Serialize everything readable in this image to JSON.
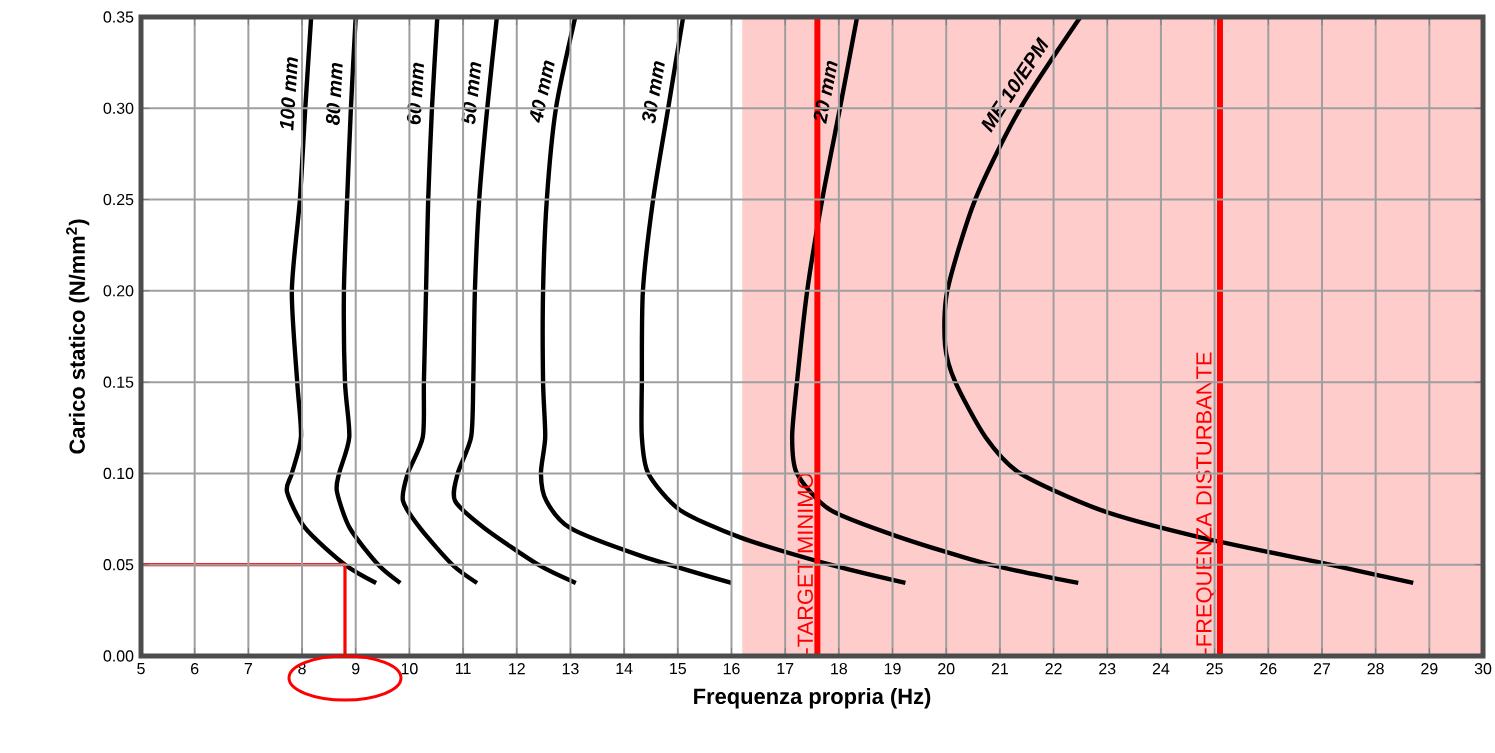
{
  "chart_data": {
    "type": "line",
    "xlabel": "Frequenza propria (Hz)",
    "ylabel": "Carico statico (N/mm$^{2}$)",
    "xlim": [
      5,
      30
    ],
    "ylim": [
      0,
      0.35
    ],
    "xticks": [
      5,
      6,
      7,
      8,
      9,
      10,
      11,
      12,
      13,
      14,
      15,
      16,
      17,
      18,
      19,
      20,
      21,
      22,
      23,
      24,
      25,
      26,
      27,
      28,
      29,
      30
    ],
    "yticks": [
      {
        "value": 0,
        "label": "0.00"
      },
      0.05,
      {
        "value": 0.1,
        "label": "0.10"
      },
      0.15,
      {
        "value": 0.2,
        "label": "0.20"
      },
      0.25,
      {
        "value": 0.3,
        "label": "0.30"
      },
      0.35
    ],
    "grid": true,
    "marker": "none",
    "series": [
      {
        "name": "100 mm",
        "color": "#000000",
        "x": [
          8.17,
          8.06,
          7.96,
          7.81,
          7.91,
          7.98,
          7.81,
          7.72,
          8.06,
          8.8,
          9.38
        ],
        "values": [
          0.35,
          0.3,
          0.25,
          0.2,
          0.15,
          0.12,
          0.1,
          0.09,
          0.07,
          0.05,
          0.04
        ]
      },
      {
        "name": "80 mm",
        "color": "#000000",
        "x": [
          9.0,
          8.91,
          8.84,
          8.78,
          8.8,
          8.88,
          8.69,
          8.65,
          8.89,
          9.42,
          9.83
        ],
        "values": [
          0.35,
          0.3,
          0.25,
          0.2,
          0.15,
          0.12,
          0.1,
          0.09,
          0.07,
          0.05,
          0.04
        ]
      },
      {
        "name": "60 mm",
        "color": "#000000",
        "x": [
          10.52,
          10.42,
          10.35,
          10.31,
          10.27,
          10.25,
          9.97,
          9.88,
          10.2,
          10.8,
          11.26
        ],
        "values": [
          0.35,
          0.3,
          0.25,
          0.2,
          0.15,
          0.12,
          0.1,
          0.085,
          0.07,
          0.05,
          0.04
        ]
      },
      {
        "name": "50 mm",
        "color": "#000000",
        "x": [
          11.63,
          11.45,
          11.3,
          11.22,
          11.19,
          11.15,
          10.9,
          10.85,
          11.4,
          12.4,
          13.1
        ],
        "values": [
          0.35,
          0.3,
          0.25,
          0.2,
          0.15,
          0.12,
          0.1,
          0.085,
          0.07,
          0.05,
          0.04
        ]
      },
      {
        "name": "40 mm",
        "color": "#000000",
        "x": [
          13.09,
          12.73,
          12.56,
          12.49,
          12.49,
          12.53,
          12.45,
          12.55,
          13.0,
          14.3,
          16.0
        ],
        "values": [
          0.35,
          0.3,
          0.25,
          0.2,
          0.15,
          0.12,
          0.1,
          0.085,
          0.07,
          0.055,
          0.04
        ]
      },
      {
        "name": "30 mm",
        "color": "#000000",
        "x": [
          15.1,
          14.82,
          14.54,
          14.35,
          14.33,
          14.33,
          14.45,
          15.04,
          16.16,
          17.84,
          19.24
        ],
        "values": [
          0.35,
          0.3,
          0.25,
          0.2,
          0.15,
          0.12,
          0.1,
          0.08,
          0.065,
          0.05,
          0.04
        ]
      },
      {
        "name": "20 mm",
        "color": "#000000",
        "x": [
          18.34,
          18.02,
          17.69,
          17.41,
          17.22,
          17.13,
          17.22,
          17.84,
          19.14,
          20.82,
          22.46
        ],
        "values": [
          0.35,
          0.3,
          0.25,
          0.2,
          0.15,
          0.12,
          0.1,
          0.08,
          0.065,
          0.05,
          0.04
        ]
      },
      {
        "name": "ME 10/EPM",
        "color": "#000000",
        "x": [
          22.5,
          21.38,
          20.54,
          20.02,
          19.98,
          20.17,
          20.73,
          21.38,
          22.87,
          24.73,
          27.15,
          28.7
        ],
        "values": [
          0.35,
          0.3,
          0.25,
          0.2,
          0.17,
          0.15,
          0.12,
          0.1,
          0.08,
          0.065,
          0.05,
          0.04
        ]
      },
      {
        "type": "step",
        "color": "#ff0000",
        "x": [
          5,
          8.8
        ],
        "values": [
          0.05,
          0
        ]
      }
    ],
    "bands": [
      {
        "axis": "x",
        "from": 16.2,
        "to": 30,
        "color": "#ffcccc"
      }
    ],
    "ref_lines": [
      {
        "axis": "x",
        "value": 17.6,
        "label": "-TARGET MINIMO",
        "color": "#ff0000"
      },
      {
        "axis": "x",
        "value": 25.1,
        "label": "-FREQUENZA DISTURBANTE",
        "color": "#ff0000"
      }
    ]
  }
}
